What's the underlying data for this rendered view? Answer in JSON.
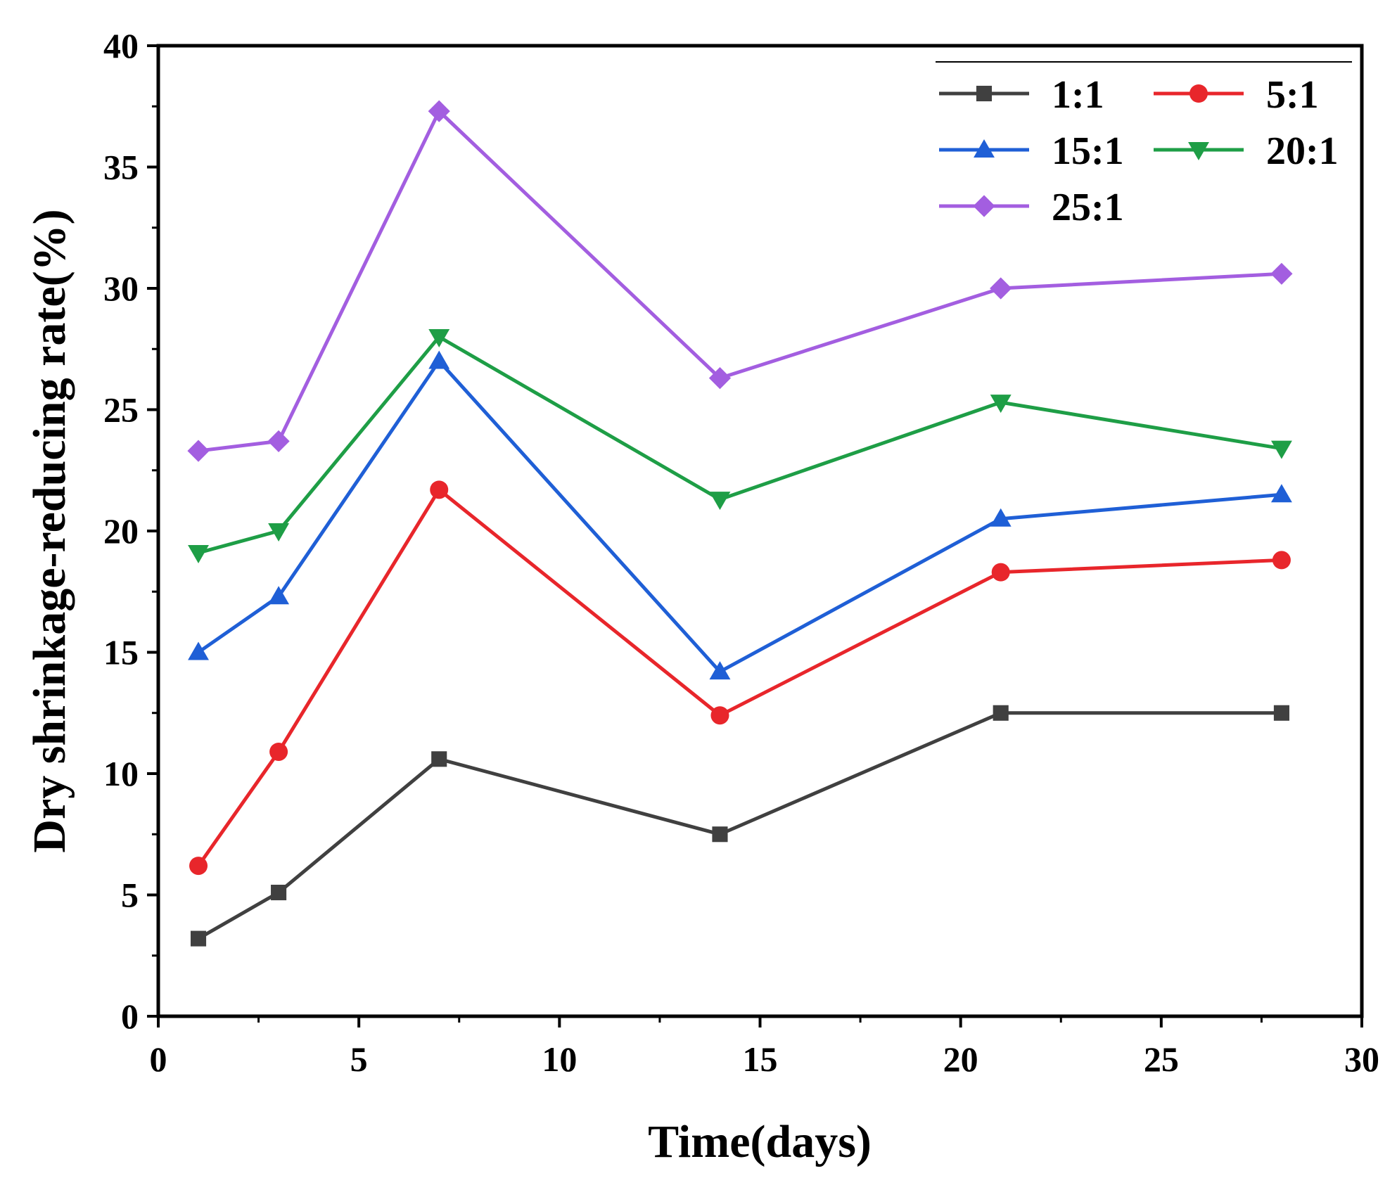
{
  "chart_data": {
    "type": "line",
    "title": "",
    "xlabel": "Time(days)",
    "ylabel": "Dry shrinkage-reducing rate(%)",
    "xlim": [
      0,
      30
    ],
    "ylim": [
      0,
      40
    ],
    "xticks": [
      0,
      5,
      10,
      15,
      20,
      25,
      30
    ],
    "xtick_labels": [
      "0",
      "5",
      "10",
      "15",
      "20",
      "25",
      "30"
    ],
    "yticks": [
      0,
      5,
      10,
      15,
      20,
      25,
      30,
      35,
      40
    ],
    "ytick_labels": [
      "0",
      "5",
      "10",
      "15",
      "20",
      "25",
      "30",
      "35",
      "40"
    ],
    "grid": false,
    "legend_position": "top-right",
    "x": [
      1,
      3,
      7,
      14,
      21,
      28
    ],
    "series": [
      {
        "name": "1:1",
        "color": "#404040",
        "marker": "square",
        "values": [
          3.2,
          5.1,
          10.6,
          7.5,
          12.5,
          12.5
        ]
      },
      {
        "name": "5:1",
        "color": "#e8262b",
        "marker": "circle",
        "values": [
          6.2,
          10.9,
          21.7,
          12.4,
          18.3,
          18.8
        ]
      },
      {
        "name": "15:1",
        "color": "#1f5fd6",
        "marker": "triangle-up",
        "values": [
          15.0,
          17.3,
          27.0,
          14.2,
          20.5,
          21.5
        ]
      },
      {
        "name": "20:1",
        "color": "#1e9e46",
        "marker": "triangle-down",
        "values": [
          19.1,
          20.0,
          28.0,
          21.3,
          25.3,
          23.4
        ]
      },
      {
        "name": "25:1",
        "color": "#a35ee0",
        "marker": "diamond",
        "values": [
          23.3,
          23.7,
          37.3,
          26.3,
          30.0,
          30.6
        ]
      }
    ]
  }
}
